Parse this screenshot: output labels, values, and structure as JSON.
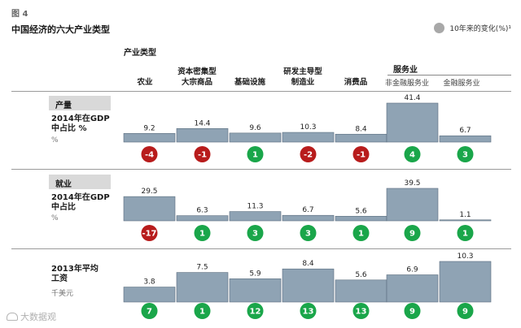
{
  "figure_label": "图 4",
  "title": "中国经济的六大产业类型",
  "legend_label": "10年来的变化(%)¹",
  "industry_type_header": "产业类型",
  "services_header": "服务业",
  "columns": [
    {
      "label": [
        "农业"
      ]
    },
    {
      "label": [
        "资本密集型",
        "大宗商品"
      ]
    },
    {
      "label": [
        "基础设施"
      ]
    },
    {
      "label": [
        "研发主导型",
        "制造业"
      ]
    },
    {
      "label": [
        "消费品"
      ]
    },
    {
      "label": [
        "非金融服务业"
      ]
    },
    {
      "label": [
        "金融服务业"
      ]
    }
  ],
  "sections": [
    {
      "tag": "产量",
      "label_lines": [
        "2014年在GDP",
        "中占比 %"
      ],
      "unit": "%"
    },
    {
      "tag": "就业",
      "label_lines": [
        "2014年在GDP",
        "中占比"
      ],
      "unit": "%"
    },
    {
      "tag": "",
      "label_lines": [
        "2013年平均",
        "工资"
      ],
      "unit": "千美元"
    }
  ],
  "colors": {
    "bar": "#8fa3b4",
    "bar_border": "#5a6d7e",
    "positive": "#1aa64a",
    "negative": "#b81c1c",
    "legend_dot": "#a8a8a8"
  },
  "watermark": "大数据观",
  "chart_data": [
    {
      "type": "bar",
      "categories": [
        "农业",
        "资本密集型大宗商品",
        "基础设施",
        "研发主导型制造业",
        "消费品",
        "非金融服务业",
        "金融服务业"
      ],
      "values": [
        9.2,
        14.4,
        9.6,
        10.3,
        8.4,
        41.4,
        6.7
      ],
      "changes": [
        -4,
        -1,
        1,
        -2,
        -1,
        4,
        3
      ]
    },
    {
      "type": "bar",
      "categories": [
        "农业",
        "资本密集型大宗商品",
        "基础设施",
        "研发主导型制造业",
        "消费品",
        "非金融服务业",
        "金融服务业"
      ],
      "values": [
        29.5,
        6.3,
        11.3,
        6.7,
        5.6,
        39.5,
        1.1
      ],
      "changes": [
        -17,
        1,
        3,
        3,
        1,
        9,
        1
      ]
    },
    {
      "type": "bar",
      "categories": [
        "农业",
        "资本密集型大宗商品",
        "基础设施",
        "研发主导型制造业",
        "消费品",
        "非金融服务业",
        "金融服务业"
      ],
      "values": [
        3.8,
        7.5,
        5.9,
        8.4,
        5.6,
        6.9,
        10.3
      ],
      "changes": [
        7,
        1,
        12,
        13,
        13,
        9,
        9
      ]
    }
  ]
}
